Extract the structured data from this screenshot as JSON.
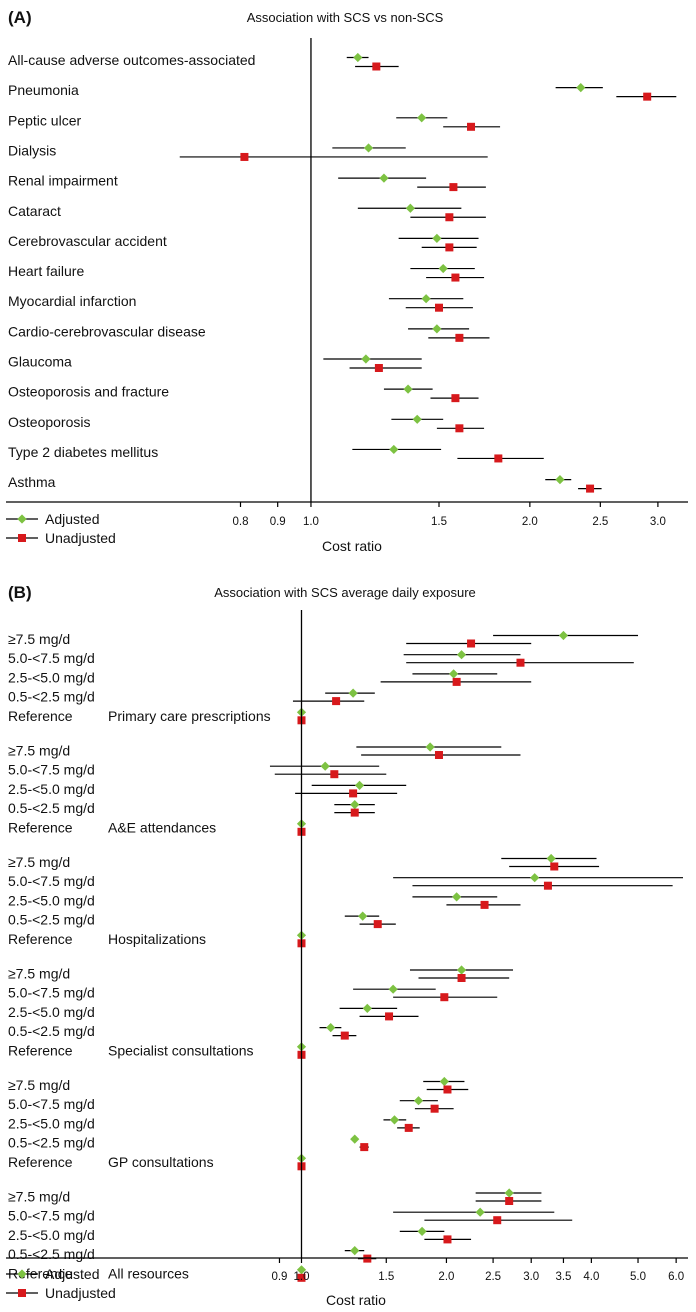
{
  "colors": {
    "adjusted": "#7dc242",
    "unadjusted": "#d7191c",
    "line": "#000000"
  },
  "legend": {
    "adjusted": "Adjusted",
    "unadjusted": "Unadjusted"
  },
  "chart_data": [
    {
      "type": "forest",
      "panel_label": "(A)",
      "title": "Association with SCS vs non-SCS",
      "xlabel": "Cost ratio",
      "xscale": "log",
      "xlim": [
        0.62,
        3.3
      ],
      "ticks": [
        0.8,
        0.9,
        1.0,
        1.5,
        2.0,
        2.5,
        3.0
      ],
      "tick_labels": [
        "0.8",
        "0.9",
        "1.0",
        "1.5",
        "2.0",
        "2.5",
        "3.0"
      ],
      "reference_line": 1.0,
      "grid": false,
      "legend_position": "bottom-left",
      "rows": [
        {
          "label": "All-cause adverse outcomes-associated",
          "adjusted": [
            1.16,
            1.12,
            1.2
          ],
          "unadjusted": [
            1.23,
            1.15,
            1.32
          ]
        },
        {
          "label": "Pneumonia",
          "adjusted": [
            2.35,
            2.17,
            2.52
          ],
          "unadjusted": [
            2.9,
            2.63,
            3.18
          ]
        },
        {
          "label": "Peptic ulcer",
          "adjusted": [
            1.42,
            1.31,
            1.54
          ],
          "unadjusted": [
            1.66,
            1.52,
            1.82
          ]
        },
        {
          "label": "Dialysis",
          "adjusted": [
            1.2,
            1.07,
            1.35
          ],
          "unadjusted": [
            0.81,
            0.66,
            1.75
          ]
        },
        {
          "label": "Renal impairment",
          "adjusted": [
            1.26,
            1.09,
            1.44
          ],
          "unadjusted": [
            1.57,
            1.4,
            1.74
          ]
        },
        {
          "label": "Cataract",
          "adjusted": [
            1.37,
            1.16,
            1.61
          ],
          "unadjusted": [
            1.55,
            1.37,
            1.74
          ]
        },
        {
          "label": "Cerebrovascular accident",
          "adjusted": [
            1.49,
            1.32,
            1.7
          ],
          "unadjusted": [
            1.55,
            1.42,
            1.69
          ]
        },
        {
          "label": "Heart failure",
          "adjusted": [
            1.52,
            1.37,
            1.68
          ],
          "unadjusted": [
            1.58,
            1.44,
            1.73
          ]
        },
        {
          "label": "Myocardial infarction",
          "adjusted": [
            1.44,
            1.28,
            1.62
          ],
          "unadjusted": [
            1.5,
            1.35,
            1.67
          ]
        },
        {
          "label": "Cardio-cerebrovascular disease",
          "adjusted": [
            1.49,
            1.36,
            1.65
          ],
          "unadjusted": [
            1.6,
            1.45,
            1.76
          ]
        },
        {
          "label": "Glaucoma",
          "adjusted": [
            1.19,
            1.04,
            1.42
          ],
          "unadjusted": [
            1.24,
            1.13,
            1.42
          ]
        },
        {
          "label": "Osteoporosis and fracture",
          "adjusted": [
            1.36,
            1.26,
            1.47
          ],
          "unadjusted": [
            1.58,
            1.46,
            1.7
          ]
        },
        {
          "label": "Osteoporosis",
          "adjusted": [
            1.4,
            1.29,
            1.52
          ],
          "unadjusted": [
            1.6,
            1.49,
            1.73
          ]
        },
        {
          "label": "Type 2 diabetes mellitus",
          "adjusted": [
            1.3,
            1.14,
            1.51
          ],
          "unadjusted": [
            1.81,
            1.59,
            2.09
          ]
        },
        {
          "label": "Asthma",
          "adjusted": [
            2.2,
            2.1,
            2.28
          ],
          "unadjusted": [
            2.42,
            2.33,
            2.51
          ]
        }
      ]
    },
    {
      "type": "forest",
      "panel_label": "(B)",
      "title": "Association with SCS average daily exposure",
      "xlabel": "Cost ratio",
      "xscale": "log",
      "xlim": [
        0.82,
        6.35
      ],
      "ticks": [
        0.9,
        1.0,
        1.5,
        2.0,
        2.5,
        3.0,
        3.5,
        4.0,
        5.0,
        6.0
      ],
      "tick_labels": [
        "0.9",
        "1.0",
        "1.5",
        "2.0",
        "2.5",
        "3.0",
        "3.5",
        "4.0",
        "5.0",
        "6.0"
      ],
      "reference_line": 1.0,
      "grid": false,
      "legend_position": "bottom-left",
      "groups": [
        {
          "name": "Primary care prescriptions",
          "rows": [
            {
              "label": "≥7.5 mg/d",
              "adjusted": [
                3.5,
                2.5,
                5.0
              ],
              "unadjusted": [
                2.25,
                1.65,
                3.0
              ]
            },
            {
              "label": "5.0-<7.5 mg/d",
              "adjusted": [
                2.15,
                1.63,
                2.85
              ],
              "unadjusted": [
                2.85,
                1.65,
                4.9
              ]
            },
            {
              "label": "2.5-<5.0 mg/d",
              "adjusted": [
                2.07,
                1.7,
                2.55
              ],
              "unadjusted": [
                2.1,
                1.46,
                3.0
              ]
            },
            {
              "label": "0.5-<2.5 mg/d",
              "adjusted": [
                1.28,
                1.12,
                1.42
              ],
              "unadjusted": [
                1.18,
                0.96,
                1.35
              ]
            },
            {
              "label": "Reference",
              "adjusted": [
                1.0,
                1.0,
                1.0
              ],
              "unadjusted": [
                1.0,
                1.0,
                1.0
              ]
            }
          ]
        },
        {
          "name": "A&E attendances",
          "rows": [
            {
              "label": "≥7.5 mg/d",
              "adjusted": [
                1.85,
                1.3,
                2.6
              ],
              "unadjusted": [
                1.93,
                1.33,
                2.85
              ]
            },
            {
              "label": "5.0-<7.5 mg/d",
              "adjusted": [
                1.12,
                0.86,
                1.45
              ],
              "unadjusted": [
                1.17,
                0.88,
                1.5
              ]
            },
            {
              "label": "2.5-<5.0 mg/d",
              "adjusted": [
                1.32,
                1.05,
                1.65
              ],
              "unadjusted": [
                1.28,
                0.97,
                1.58
              ]
            },
            {
              "label": "0.5-<2.5 mg/d",
              "adjusted": [
                1.29,
                1.17,
                1.42
              ],
              "unadjusted": [
                1.29,
                1.17,
                1.42
              ]
            },
            {
              "label": "Reference",
              "adjusted": [
                1.0,
                1.0,
                1.0
              ],
              "unadjusted": [
                1.0,
                1.0,
                1.0
              ]
            }
          ]
        },
        {
          "name": "Hospitalizations",
          "rows": [
            {
              "label": "≥7.5 mg/d",
              "adjusted": [
                3.3,
                2.6,
                4.1
              ],
              "unadjusted": [
                3.35,
                2.7,
                4.15
              ]
            },
            {
              "label": "5.0-<7.5 mg/d",
              "adjusted": [
                3.05,
                1.55,
                6.2
              ],
              "unadjusted": [
                3.25,
                1.7,
                5.9
              ]
            },
            {
              "label": "2.5-<5.0 mg/d",
              "adjusted": [
                2.1,
                1.7,
                2.55
              ],
              "unadjusted": [
                2.4,
                2.0,
                2.85
              ]
            },
            {
              "label": "0.5-<2.5 mg/d",
              "adjusted": [
                1.34,
                1.23,
                1.45
              ],
              "unadjusted": [
                1.44,
                1.32,
                1.57
              ]
            },
            {
              "label": "Reference",
              "adjusted": [
                1.0,
                1.0,
                1.0
              ],
              "unadjusted": [
                1.0,
                1.0,
                1.0
              ]
            }
          ]
        },
        {
          "name": "Specialist consultations",
          "rows": [
            {
              "label": "≥7.5 mg/d",
              "adjusted": [
                2.15,
                1.68,
                2.75
              ],
              "unadjusted": [
                2.15,
                1.75,
                2.7
              ]
            },
            {
              "label": "5.0-<7.5 mg/d",
              "adjusted": [
                1.55,
                1.28,
                1.9
              ],
              "unadjusted": [
                1.98,
                1.55,
                2.55
              ]
            },
            {
              "label": "2.5-<5.0 mg/d",
              "adjusted": [
                1.37,
                1.2,
                1.58
              ],
              "unadjusted": [
                1.52,
                1.32,
                1.75
              ]
            },
            {
              "label": "0.5-<2.5 mg/d",
              "adjusted": [
                1.15,
                1.09,
                1.21
              ],
              "unadjusted": [
                1.23,
                1.16,
                1.3
              ]
            },
            {
              "label": "Reference",
              "adjusted": [
                1.0,
                1.0,
                1.0
              ],
              "unadjusted": [
                1.0,
                1.0,
                1.0
              ]
            }
          ]
        },
        {
          "name": "GP consultations",
          "rows": [
            {
              "label": "≥7.5 mg/d",
              "adjusted": [
                1.98,
                1.79,
                2.18
              ],
              "unadjusted": [
                2.01,
                1.82,
                2.22
              ]
            },
            {
              "label": "5.0-<7.5 mg/d",
              "adjusted": [
                1.75,
                1.6,
                1.92
              ],
              "unadjusted": [
                1.89,
                1.72,
                2.07
              ]
            },
            {
              "label": "2.5-<5.0 mg/d",
              "adjusted": [
                1.56,
                1.48,
                1.65
              ],
              "unadjusted": [
                1.67,
                1.58,
                1.76
              ]
            },
            {
              "label": "0.5-<2.5 mg/d",
              "adjusted": [
                1.29,
                1.27,
                1.31
              ],
              "unadjusted": [
                1.35,
                1.32,
                1.38
              ]
            },
            {
              "label": "Reference",
              "adjusted": [
                1.0,
                1.0,
                1.0
              ],
              "unadjusted": [
                1.0,
                1.0,
                1.0
              ]
            }
          ]
        },
        {
          "name": "All resources",
          "rows": [
            {
              "label": "≥7.5 mg/d",
              "adjusted": [
                2.7,
                2.3,
                3.15
              ],
              "unadjusted": [
                2.7,
                2.3,
                3.15
              ]
            },
            {
              "label": "5.0-<7.5 mg/d",
              "adjusted": [
                2.35,
                1.55,
                3.35
              ],
              "unadjusted": [
                2.55,
                1.8,
                3.65
              ]
            },
            {
              "label": "2.5-<5.0 mg/d",
              "adjusted": [
                1.78,
                1.6,
                1.98
              ],
              "unadjusted": [
                2.01,
                1.8,
                2.25
              ]
            },
            {
              "label": "0.5-<2.5 mg/d",
              "adjusted": [
                1.29,
                1.23,
                1.35
              ],
              "unadjusted": [
                1.37,
                1.31,
                1.43
              ]
            },
            {
              "label": "Reference",
              "adjusted": [
                1.0,
                1.0,
                1.0
              ],
              "unadjusted": [
                1.0,
                1.0,
                1.0
              ]
            }
          ]
        }
      ]
    }
  ]
}
